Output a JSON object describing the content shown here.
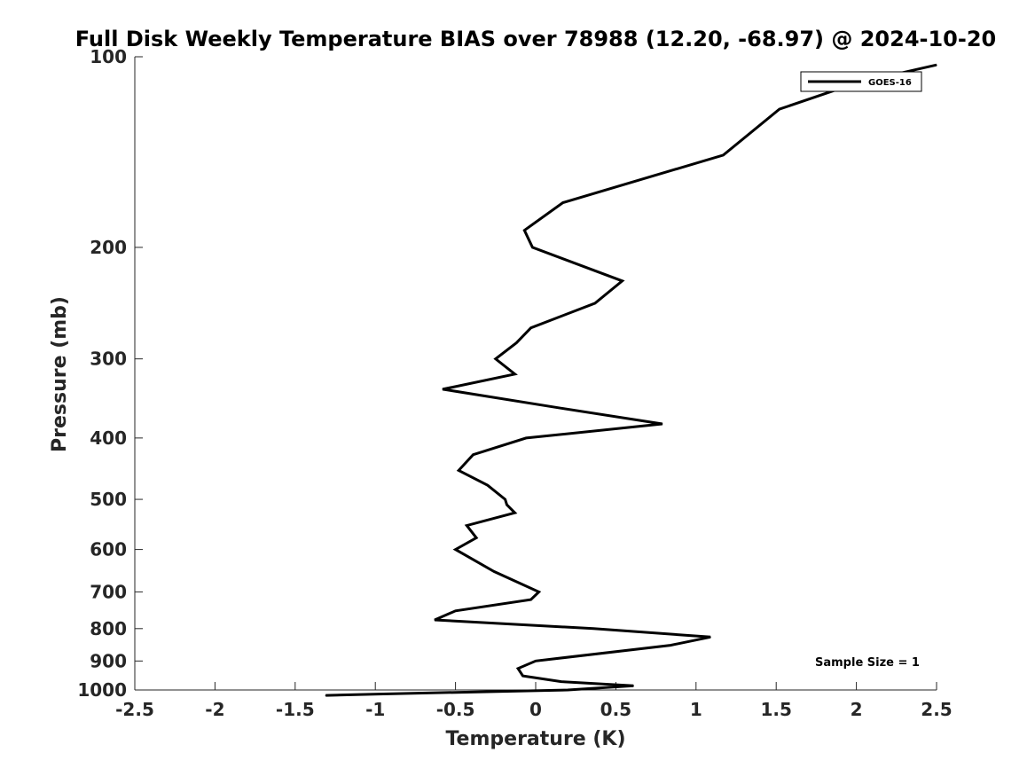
{
  "chart_data": {
    "type": "line",
    "title": "Full Disk Weekly Temperature BIAS over 78988 (12.20, -68.97) @ 2024-10-20",
    "xlabel": "Temperature (K)",
    "ylabel": "Pressure (mb)",
    "xlim": [
      -2.5,
      2.5
    ],
    "ylim": [
      100,
      1000
    ],
    "y_scale": "log",
    "y_reversed": true,
    "grid": false,
    "x_ticks": [
      "-2.5",
      "-2",
      "-1.5",
      "-1",
      "-0.5",
      "0",
      "0.5",
      "1",
      "1.5",
      "2",
      "2.5"
    ],
    "y_ticks": [
      "100",
      "200",
      "300",
      "400",
      "500",
      "600",
      "700",
      "800",
      "900",
      "1000"
    ],
    "legend": {
      "position": "top-right",
      "entries": [
        "GOES-16"
      ]
    },
    "annotation": "Sample Size = 1",
    "series": [
      {
        "name": "GOES-16",
        "color": "#000000",
        "points": [
          {
            "x": 2.5,
            "y": 103
          },
          {
            "x": 2.0,
            "y": 110
          },
          {
            "x": 1.52,
            "y": 121
          },
          {
            "x": 1.17,
            "y": 143
          },
          {
            "x": 0.17,
            "y": 170
          },
          {
            "x": -0.07,
            "y": 188
          },
          {
            "x": -0.02,
            "y": 200
          },
          {
            "x": 0.54,
            "y": 226
          },
          {
            "x": 0.37,
            "y": 245
          },
          {
            "x": -0.03,
            "y": 268
          },
          {
            "x": -0.12,
            "y": 283
          },
          {
            "x": -0.25,
            "y": 300
          },
          {
            "x": -0.13,
            "y": 317
          },
          {
            "x": -0.58,
            "y": 335
          },
          {
            "x": 0.16,
            "y": 359
          },
          {
            "x": 0.79,
            "y": 380
          },
          {
            "x": -0.06,
            "y": 400
          },
          {
            "x": -0.39,
            "y": 425
          },
          {
            "x": -0.48,
            "y": 450
          },
          {
            "x": -0.3,
            "y": 475
          },
          {
            "x": -0.19,
            "y": 500
          },
          {
            "x": -0.18,
            "y": 510
          },
          {
            "x": -0.13,
            "y": 525
          },
          {
            "x": -0.43,
            "y": 550
          },
          {
            "x": -0.37,
            "y": 575
          },
          {
            "x": -0.5,
            "y": 600
          },
          {
            "x": -0.26,
            "y": 650
          },
          {
            "x": -0.09,
            "y": 680
          },
          {
            "x": 0.02,
            "y": 700
          },
          {
            "x": -0.03,
            "y": 720
          },
          {
            "x": -0.5,
            "y": 750
          },
          {
            "x": -0.63,
            "y": 775
          },
          {
            "x": 0.36,
            "y": 800
          },
          {
            "x": 1.09,
            "y": 825
          },
          {
            "x": 0.84,
            "y": 850
          },
          {
            "x": 0.0,
            "y": 900
          },
          {
            "x": -0.11,
            "y": 925
          },
          {
            "x": -0.08,
            "y": 950
          },
          {
            "x": 0.16,
            "y": 970
          },
          {
            "x": 0.61,
            "y": 985
          },
          {
            "x": 0.2,
            "y": 1000
          },
          {
            "x": -0.37,
            "y": 1007
          },
          {
            "x": -0.98,
            "y": 1015
          },
          {
            "x": -1.31,
            "y": 1020
          }
        ]
      }
    ]
  }
}
